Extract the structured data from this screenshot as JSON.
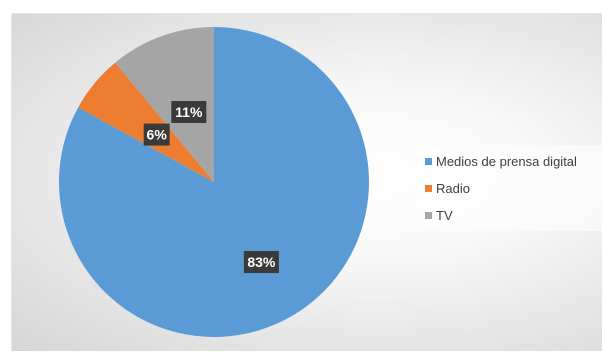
{
  "chart_data": {
    "type": "pie",
    "title": "",
    "categories": [
      "Medios de prensa digital",
      "Radio",
      "TV"
    ],
    "values": [
      83,
      6,
      11
    ],
    "value_labels": [
      "83%",
      "6%",
      "11%"
    ],
    "colors": [
      "#5b9bd5",
      "#ed7d31",
      "#a5a5a5"
    ],
    "start": "top",
    "direction": "clockwise",
    "legend_position": "right"
  }
}
